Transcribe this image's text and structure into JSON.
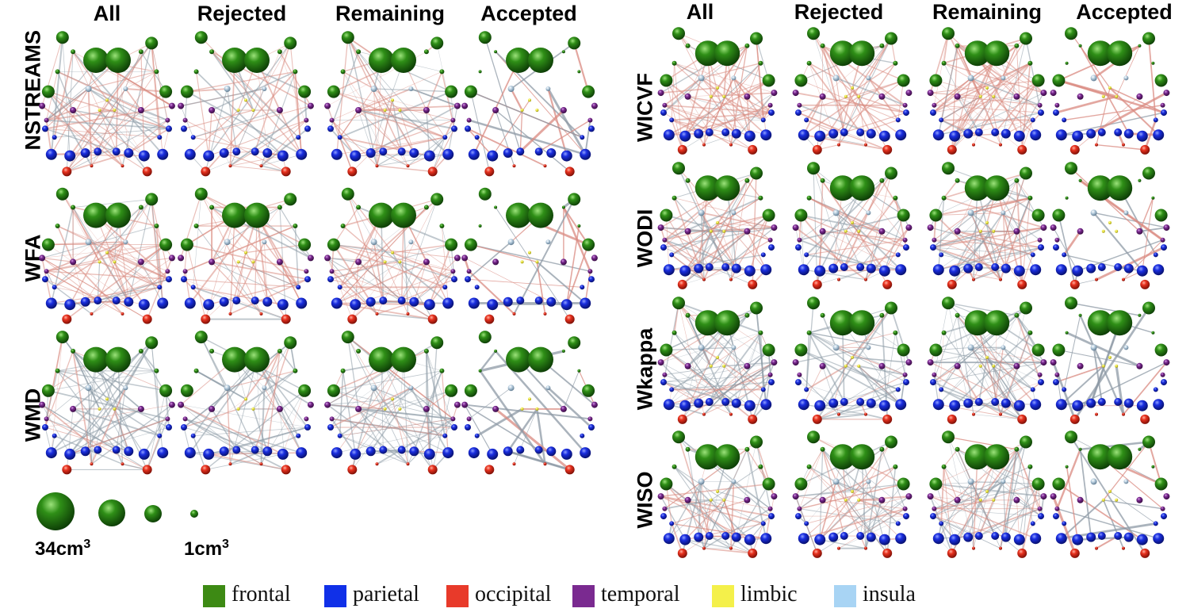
{
  "left_panel": {
    "columns": [
      "All",
      "Rejected",
      "Remaining",
      "Accepted"
    ],
    "rows": [
      "NSTREAMS",
      "WFA",
      "WMD"
    ]
  },
  "right_panel": {
    "columns": [
      "All",
      "Rejected",
      "Remaining",
      "Accepted"
    ],
    "rows": [
      "WICVF",
      "WODI",
      "Wkappa",
      "WISO"
    ]
  },
  "size_legend": {
    "max_label": "34cm",
    "min_label": "1cm",
    "superscript": "3"
  },
  "region_legend": [
    {
      "label": "frontal",
      "color": "#3d8a14"
    },
    {
      "label": "parietal",
      "color": "#1030e8"
    },
    {
      "label": "occipital",
      "color": "#e83a2a"
    },
    {
      "label": "temporal",
      "color": "#7a2a90"
    },
    {
      "label": "limbic",
      "color": "#f4f04a"
    },
    {
      "label": "insula",
      "color": "#a8d4f4"
    }
  ]
}
